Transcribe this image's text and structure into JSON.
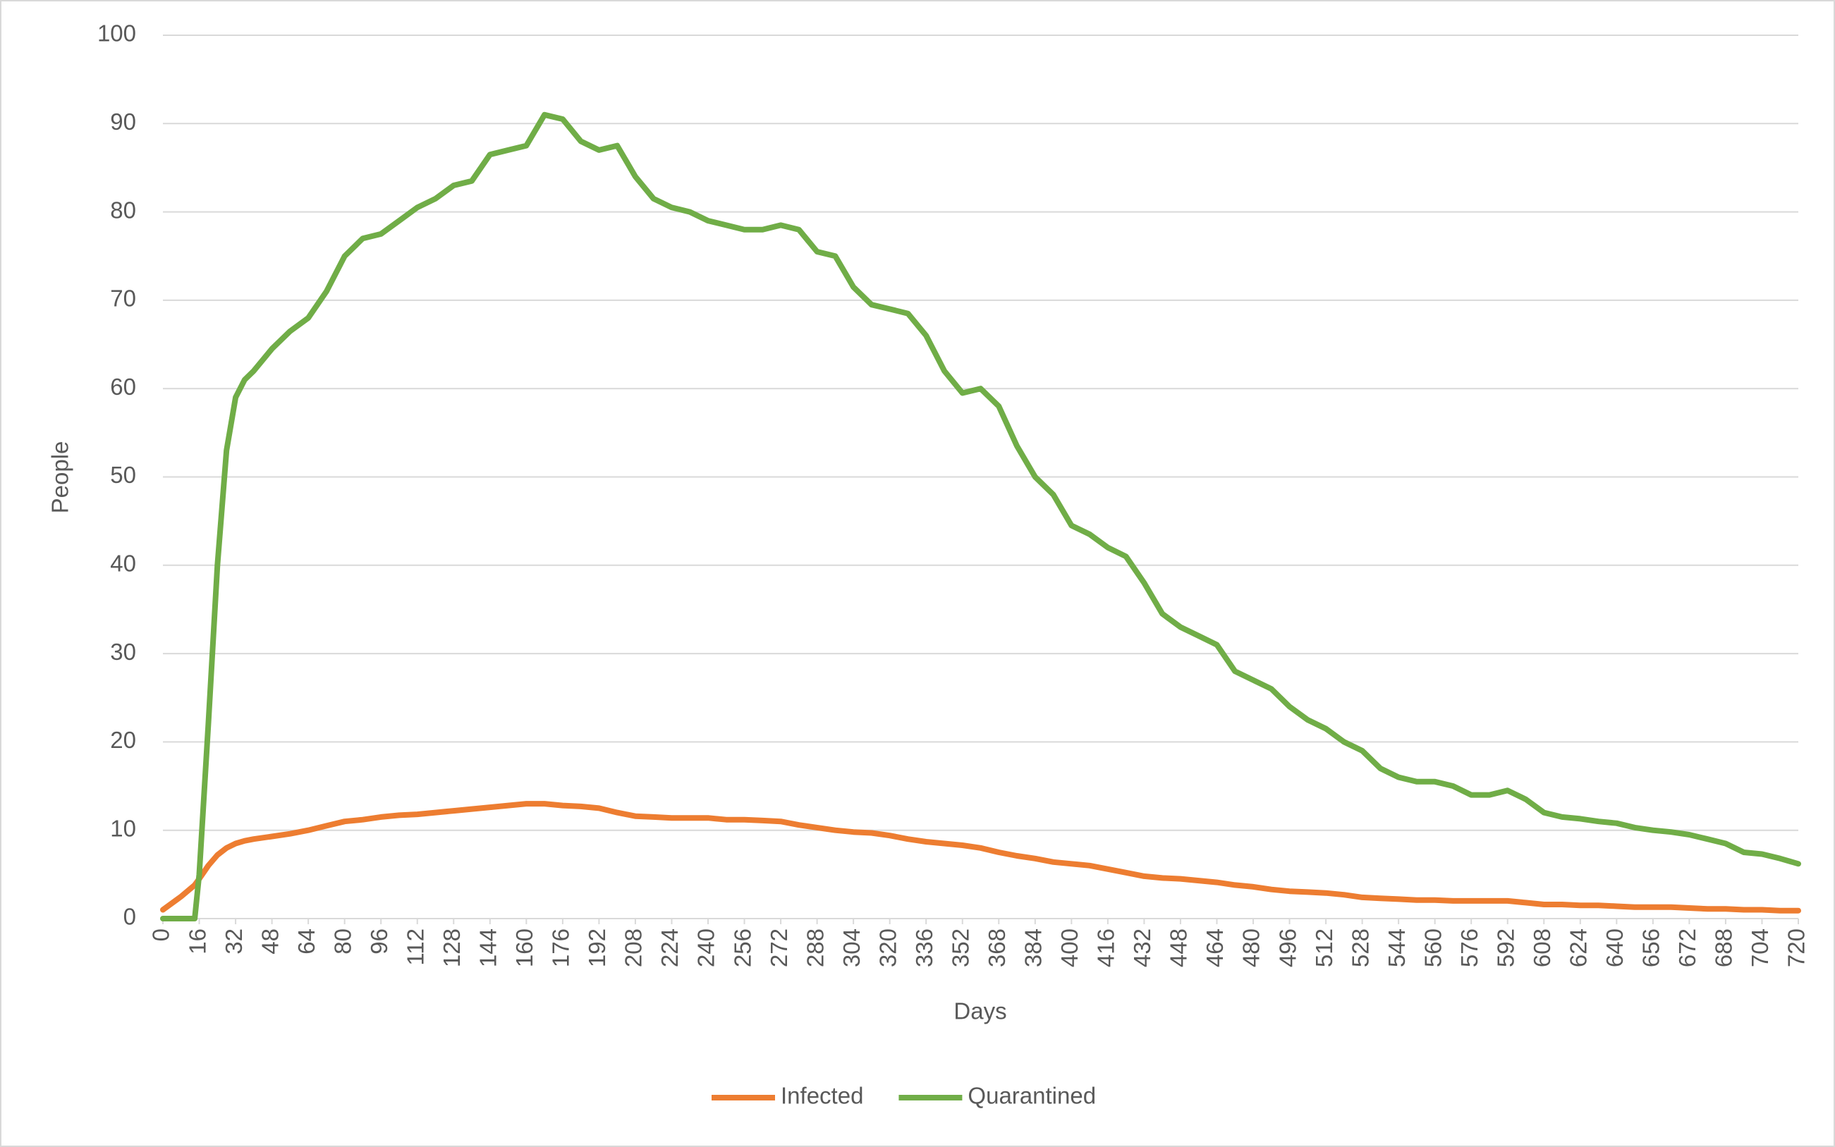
{
  "chart_data": {
    "type": "line",
    "x_label": "Days",
    "y_label": "People",
    "x": [
      0,
      8,
      14,
      16,
      20,
      24,
      28,
      32,
      36,
      40,
      48,
      56,
      64,
      72,
      80,
      88,
      96,
      104,
      112,
      120,
      128,
      136,
      144,
      152,
      160,
      168,
      176,
      184,
      192,
      200,
      208,
      216,
      224,
      232,
      240,
      248,
      256,
      264,
      272,
      280,
      288,
      296,
      304,
      312,
      320,
      328,
      336,
      344,
      352,
      360,
      368,
      376,
      384,
      392,
      400,
      408,
      416,
      424,
      432,
      440,
      448,
      456,
      464,
      472,
      480,
      488,
      496,
      504,
      512,
      520,
      528,
      536,
      544,
      552,
      560,
      568,
      576,
      584,
      592,
      600,
      608,
      616,
      624,
      632,
      640,
      648,
      656,
      664,
      672,
      680,
      688,
      696,
      704,
      712,
      720
    ],
    "series": [
      {
        "name": "Infected",
        "color": "#ed7d31",
        "values": [
          1,
          2.5,
          3.8,
          4.5,
          6,
          7.2,
          8,
          8.5,
          8.8,
          9,
          9.3,
          9.6,
          10,
          10.5,
          11,
          11.2,
          11.5,
          11.7,
          11.8,
          12,
          12.2,
          12.4,
          12.6,
          12.8,
          13,
          13,
          12.8,
          12.7,
          12.5,
          12,
          11.6,
          11.5,
          11.4,
          11.4,
          11.4,
          11.2,
          11.2,
          11.1,
          11,
          10.6,
          10.3,
          10,
          9.8,
          9.7,
          9.4,
          9,
          8.7,
          8.5,
          8.3,
          8,
          7.5,
          7.1,
          6.8,
          6.4,
          6.2,
          6,
          5.6,
          5.2,
          4.8,
          4.6,
          4.5,
          4.3,
          4.1,
          3.8,
          3.6,
          3.3,
          3.1,
          3,
          2.9,
          2.7,
          2.4,
          2.3,
          2.2,
          2.1,
          2.1,
          2,
          2,
          2,
          2,
          1.8,
          1.6,
          1.6,
          1.5,
          1.5,
          1.4,
          1.3,
          1.3,
          1.3,
          1.2,
          1.1,
          1.1,
          1,
          1,
          0.9,
          0.9
        ]
      },
      {
        "name": "Quarantined",
        "color": "#70ad47",
        "values": [
          0,
          0,
          0,
          5,
          22,
          40,
          53,
          59,
          61,
          62,
          64.5,
          66.5,
          68,
          71,
          75,
          77,
          77.5,
          79,
          80.5,
          81.5,
          83,
          83.5,
          86.5,
          87,
          87.5,
          91,
          90.5,
          88,
          87,
          87.5,
          84,
          81.5,
          80.5,
          80,
          79,
          78.5,
          78,
          78,
          78.5,
          78,
          75.5,
          75,
          71.5,
          69.5,
          69,
          68.5,
          66,
          62,
          59.5,
          60,
          58,
          53.5,
          50,
          48,
          44.5,
          43.5,
          42,
          41,
          38,
          34.5,
          33,
          32,
          31,
          28,
          27,
          26,
          24,
          22.5,
          21.5,
          20,
          19,
          17,
          16,
          15.5,
          15.5,
          15,
          14,
          14,
          14.5,
          13.5,
          12,
          11.5,
          11.3,
          11,
          10.8,
          10.3,
          10,
          9.8,
          9.5,
          9,
          8.5,
          7.5,
          7.3,
          6.8,
          6.2
        ]
      }
    ],
    "xlim": [
      0,
      720
    ],
    "xticks": [
      0,
      16,
      32,
      48,
      64,
      80,
      96,
      112,
      128,
      144,
      160,
      176,
      192,
      208,
      224,
      240,
      256,
      272,
      288,
      304,
      320,
      336,
      352,
      368,
      384,
      400,
      416,
      432,
      448,
      464,
      480,
      496,
      512,
      528,
      544,
      560,
      576,
      592,
      608,
      624,
      640,
      656,
      672,
      688,
      704,
      720
    ],
    "ylim": [
      0,
      100
    ],
    "yticks": [
      0,
      10,
      20,
      30,
      40,
      50,
      60,
      70,
      80,
      90,
      100
    ],
    "grid": true,
    "legend": "bottom"
  }
}
